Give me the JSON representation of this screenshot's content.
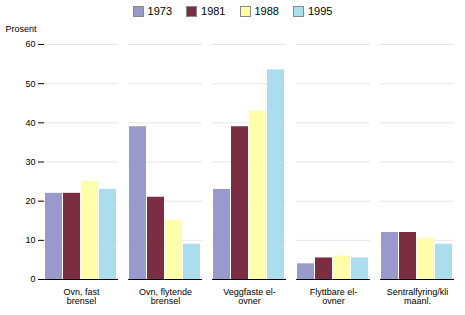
{
  "chart_data": {
    "type": "bar",
    "categories": [
      "Ovn, fast\nbrensel",
      "Ovn, flytende\nbrensel",
      "Veggfaste el-\novner",
      "Flyttbare el-\novner",
      "Sentralfyring/kli\nmaanl."
    ],
    "series": [
      {
        "name": "1973",
        "color": "#9999CC",
        "values": [
          22,
          39,
          23,
          4,
          12
        ]
      },
      {
        "name": "1981",
        "color": "#7B2D42",
        "values": [
          22,
          21,
          39,
          5.5,
          12
        ]
      },
      {
        "name": "1988",
        "color": "#FFFFAA",
        "values": [
          25,
          15,
          43,
          6,
          10.5
        ]
      },
      {
        "name": "1995",
        "color": "#AADDEE",
        "values": [
          23,
          9,
          53.5,
          5.5,
          9
        ]
      }
    ],
    "ylabel": "Prosent",
    "ylim": [
      0,
      60
    ],
    "yticks": [
      0,
      10,
      20,
      30,
      40,
      50,
      60
    ],
    "grid": true,
    "legend": "top"
  }
}
